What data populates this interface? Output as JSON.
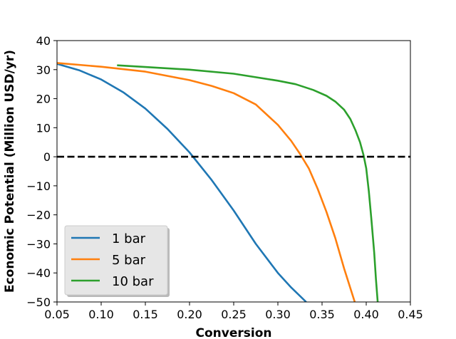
{
  "chart_data": {
    "type": "line",
    "title": "",
    "xlabel": "Conversion",
    "ylabel": "Economic Potential (Million USD/yr)",
    "xlim": [
      0.05,
      0.45
    ],
    "ylim": [
      -50,
      40
    ],
    "xticks": [
      "0.05",
      "0.10",
      "0.15",
      "0.20",
      "0.25",
      "0.30",
      "0.35",
      "0.40",
      "0.45"
    ],
    "yticks": [
      "−50",
      "−40",
      "−30",
      "−20",
      "−10",
      "0",
      "10",
      "20",
      "30",
      "40"
    ],
    "grid": false,
    "legend_position": "lower-left",
    "reference_line": {
      "y": 0,
      "style": "dashed",
      "color": "#000000"
    },
    "series": [
      {
        "name": "1 bar",
        "color": "#1f77b4",
        "x": [
          0.05,
          0.075,
          0.1,
          0.125,
          0.15,
          0.175,
          0.2,
          0.225,
          0.25,
          0.275,
          0.3,
          0.315,
          0.332
        ],
        "y": [
          32.0,
          29.8,
          26.6,
          22.2,
          16.6,
          9.6,
          1.5,
          -8.0,
          -18.5,
          -30.0,
          -40.0,
          -45.0,
          -50.0
        ]
      },
      {
        "name": "5 bar",
        "color": "#ff7f0e",
        "x": [
          0.05,
          0.1,
          0.15,
          0.2,
          0.225,
          0.25,
          0.275,
          0.3,
          0.315,
          0.325,
          0.335,
          0.345,
          0.355,
          0.365,
          0.375,
          0.387
        ],
        "y": [
          32.3,
          31.0,
          29.3,
          26.4,
          24.4,
          21.9,
          18.0,
          11.0,
          5.5,
          1.0,
          -4.0,
          -11.0,
          -19.0,
          -28.0,
          -38.5,
          -50.0
        ]
      },
      {
        "name": "10 bar",
        "color": "#2ca02c",
        "x": [
          0.118,
          0.15,
          0.2,
          0.25,
          0.3,
          0.32,
          0.34,
          0.355,
          0.365,
          0.375,
          0.382,
          0.388,
          0.393,
          0.397,
          0.4,
          0.403,
          0.406,
          0.409,
          0.411,
          0.413
        ],
        "y": [
          31.5,
          30.9,
          30.0,
          28.6,
          26.2,
          25.0,
          23.0,
          21.0,
          19.0,
          16.2,
          13.0,
          9.0,
          5.0,
          0.5,
          -4.0,
          -12.0,
          -22.0,
          -33.0,
          -42.0,
          -50.0
        ]
      }
    ]
  }
}
